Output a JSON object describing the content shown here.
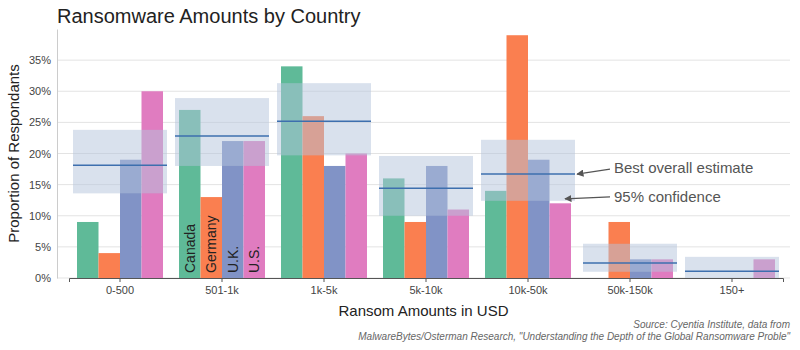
{
  "chart_data": {
    "type": "bar",
    "title": "Ransomware Amounts by Country",
    "x_label": "Ransom Amounts in USD",
    "y_label": "Proportion of Respondants",
    "categories": [
      "0-500",
      "501-1k",
      "1k-5k",
      "5k-10k",
      "10k-50k",
      "50k-150k",
      "150+"
    ],
    "series": [
      {
        "name": "Canada",
        "color": "#5fba98",
        "values": [
          9,
          27,
          34,
          16,
          14,
          0,
          0
        ]
      },
      {
        "name": "Germany",
        "color": "#fa7f50",
        "values": [
          4,
          13,
          26,
          9,
          39,
          9,
          0
        ]
      },
      {
        "name": "U.K.",
        "color": "#8193c6",
        "values": [
          19,
          22,
          18,
          18,
          19,
          3,
          0
        ]
      },
      {
        "name": "U.S.",
        "color": "#e07cc0",
        "values": [
          30,
          22,
          20,
          11,
          12,
          3,
          3
        ]
      }
    ],
    "estimate": {
      "label": "Best overall estimate",
      "color": "#3d6fae",
      "values": [
        18.1,
        22.8,
        25.2,
        14.4,
        16.7,
        2.4,
        1.1
      ]
    },
    "confidence": {
      "label": "95% confidence",
      "color": "#b3c3dc",
      "lower": [
        13.6,
        18,
        19.7,
        10,
        12.4,
        1,
        0
      ],
      "upper": [
        23.8,
        28.9,
        31.3,
        19.6,
        22.2,
        5.5,
        3.4
      ]
    },
    "ylim": [
      0,
      40
    ],
    "yticks": [
      {
        "value": 0,
        "label": "0%"
      },
      {
        "value": 5,
        "label": "5%"
      },
      {
        "value": 10,
        "label": "10%"
      },
      {
        "value": 15,
        "label": "15%"
      },
      {
        "value": 20,
        "label": "20%"
      },
      {
        "value": 25,
        "label": "25%"
      },
      {
        "value": 30,
        "label": "30%"
      },
      {
        "value": 35,
        "label": "35%"
      }
    ],
    "grid": true,
    "source": [
      "Source: Cyentia Institute, data from",
      "MalwareBytes/Osterman Research, \"Understanding the Depth of the Global Ransomware Proble\""
    ]
  }
}
